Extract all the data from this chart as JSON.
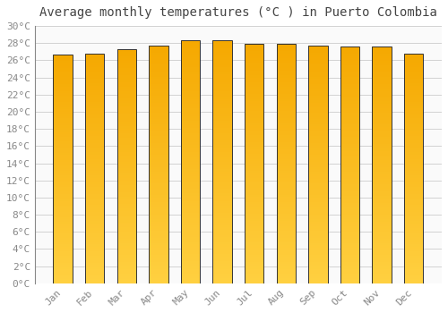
{
  "title": "Average monthly temperatures (°C ) in Puerto Colombia",
  "months": [
    "Jan",
    "Feb",
    "Mar",
    "Apr",
    "May",
    "Jun",
    "Jul",
    "Aug",
    "Sep",
    "Oct",
    "Nov",
    "Dec"
  ],
  "temperatures": [
    26.7,
    26.8,
    27.3,
    27.7,
    28.3,
    28.3,
    27.9,
    27.9,
    27.7,
    27.6,
    27.6,
    26.8
  ],
  "bar_color_bottom": "#FFD040",
  "bar_color_top": "#F5A800",
  "bar_edge_color": "#333333",
  "bg_color": "#FFFFFF",
  "plot_bg_color": "#FAFAFA",
  "grid_color": "#CCCCCC",
  "text_color": "#888888",
  "title_color": "#444444",
  "ylim": [
    0,
    30
  ],
  "ytick_step": 2,
  "title_fontsize": 10,
  "tick_fontsize": 8,
  "bar_width": 0.6
}
